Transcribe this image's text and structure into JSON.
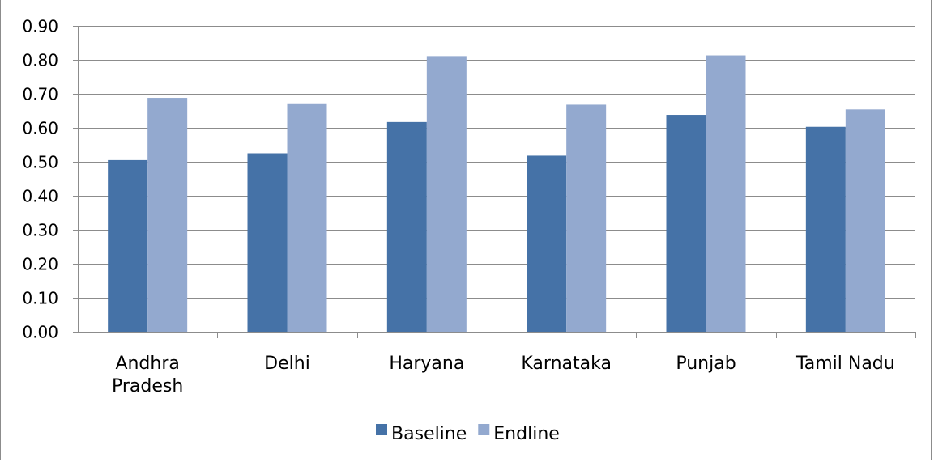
{
  "chart_data": {
    "type": "bar",
    "title": "",
    "xlabel": "",
    "ylabel": "",
    "ylim": [
      0,
      0.9
    ],
    "ytick_step": 0.1,
    "ytick_labels": [
      "0.00",
      "0.10",
      "0.20",
      "0.30",
      "0.40",
      "0.50",
      "0.60",
      "0.70",
      "0.80",
      "0.90"
    ],
    "categories": [
      [
        "Andhra",
        "Pradesh"
      ],
      [
        "Delhi"
      ],
      [
        "Haryana"
      ],
      [
        "Karnataka"
      ],
      [
        "Punjab"
      ],
      [
        "Tamil Nadu"
      ]
    ],
    "series": [
      {
        "name": "Baseline",
        "color": "#4572a7",
        "values": [
          0.505,
          0.525,
          0.617,
          0.518,
          0.638,
          0.603
        ]
      },
      {
        "name": "Endline",
        "color": "#93a9cf",
        "values": [
          0.688,
          0.672,
          0.811,
          0.668,
          0.813,
          0.654
        ]
      }
    ],
    "grid": true,
    "legend_position": "bottom"
  }
}
